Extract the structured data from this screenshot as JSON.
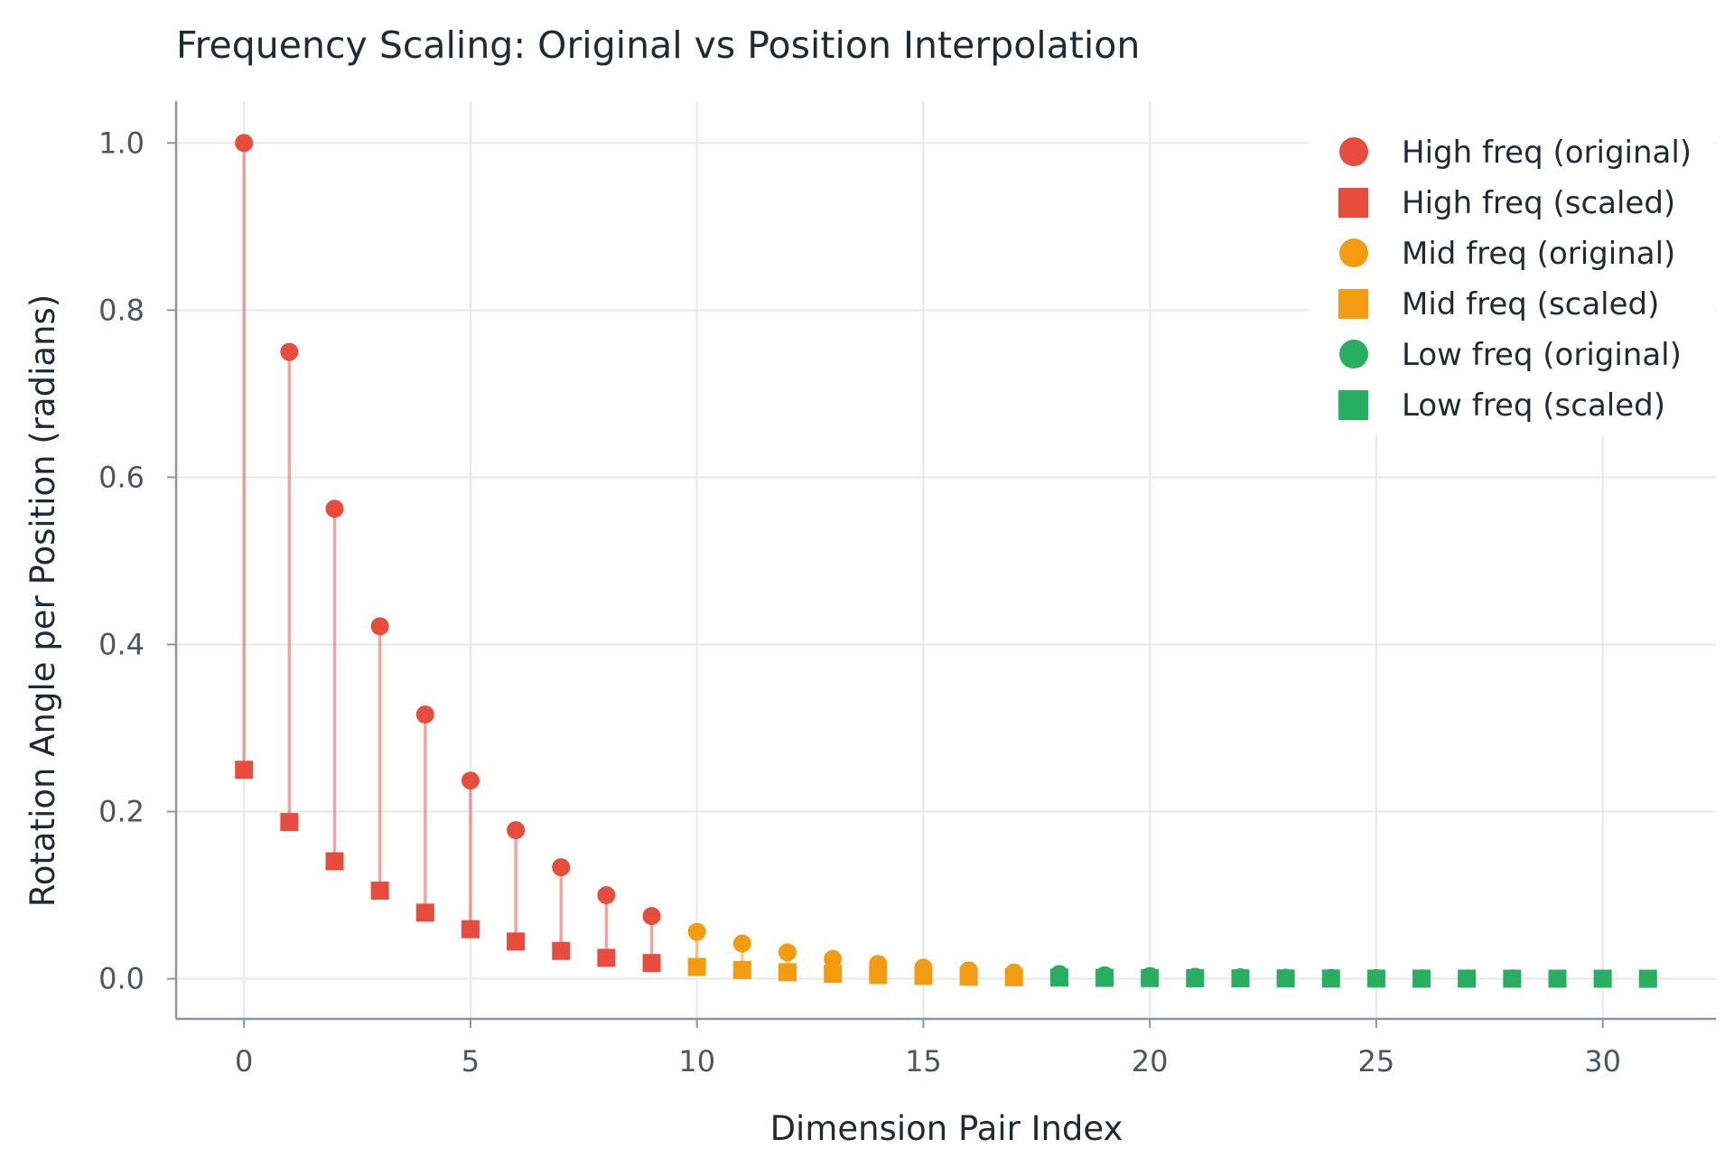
{
  "chart_data": {
    "type": "scatter",
    "title": "Frequency Scaling: Original vs Position Interpolation",
    "xlabel": "Dimension Pair Index",
    "ylabel": "Rotation Angle per Position (radians)",
    "xlim": [
      -1.5,
      32.5
    ],
    "ylim": [
      -0.048,
      1.05
    ],
    "xticks": [
      0,
      5,
      10,
      15,
      20,
      25,
      30
    ],
    "yticks": [
      0.0,
      0.2,
      0.4,
      0.6,
      0.8,
      1.0
    ],
    "ytick_labels": [
      "0.0",
      "0.2",
      "0.4",
      "0.6",
      "0.8",
      "1.0"
    ],
    "grid": true,
    "legend_position": "top-right",
    "groups": [
      {
        "name": "High freq",
        "color": "#e74c3c",
        "x": [
          0,
          1,
          2,
          3,
          4,
          5,
          6,
          7,
          8,
          9
        ]
      },
      {
        "name": "Mid freq",
        "color": "#f39c12",
        "x": [
          10,
          11,
          12,
          13,
          14,
          15,
          16,
          17
        ]
      },
      {
        "name": "Low freq",
        "color": "#27ae60",
        "x": [
          18,
          19,
          20,
          21,
          22,
          23,
          24,
          25,
          26,
          27,
          28,
          29,
          30,
          31
        ]
      }
    ],
    "series": [
      {
        "name": "High freq (original)",
        "marker": "circle",
        "color": "#e74c3c",
        "x": [
          0,
          1,
          2,
          3,
          4,
          5,
          6,
          7,
          8,
          9
        ],
        "values": [
          1.0,
          0.75,
          0.5623,
          0.4217,
          0.3162,
          0.2371,
          0.1778,
          0.1334,
          0.1,
          0.075
        ]
      },
      {
        "name": "High freq (scaled)",
        "marker": "square",
        "color": "#e74c3c",
        "x": [
          0,
          1,
          2,
          3,
          4,
          5,
          6,
          7,
          8,
          9
        ],
        "values": [
          0.25,
          0.1875,
          0.1406,
          0.1054,
          0.0791,
          0.0593,
          0.0445,
          0.0333,
          0.025,
          0.0188
        ]
      },
      {
        "name": "Mid freq (original)",
        "marker": "circle",
        "color": "#f39c12",
        "x": [
          10,
          11,
          12,
          13,
          14,
          15,
          16,
          17
        ],
        "values": [
          0.0562,
          0.0422,
          0.0316,
          0.0237,
          0.0178,
          0.0133,
          0.01,
          0.0075
        ]
      },
      {
        "name": "Mid freq (scaled)",
        "marker": "square",
        "color": "#f39c12",
        "x": [
          10,
          11,
          12,
          13,
          14,
          15,
          16,
          17
        ],
        "values": [
          0.0141,
          0.0105,
          0.0079,
          0.0059,
          0.0044,
          0.0033,
          0.0025,
          0.0019
        ]
      },
      {
        "name": "Low freq (original)",
        "marker": "circle",
        "color": "#27ae60",
        "x": [
          18,
          19,
          20,
          21,
          22,
          23,
          24,
          25,
          26,
          27,
          28,
          29,
          30,
          31
        ],
        "values": [
          0.0056,
          0.0042,
          0.0032,
          0.0024,
          0.0018,
          0.0013,
          0.001,
          0.00075,
          0.00056,
          0.00042,
          0.00032,
          0.00024,
          0.00018,
          0.00013
        ]
      },
      {
        "name": "Low freq (scaled)",
        "marker": "square",
        "color": "#27ae60",
        "x": [
          18,
          19,
          20,
          21,
          22,
          23,
          24,
          25,
          26,
          27,
          28,
          29,
          30,
          31
        ],
        "values": [
          0.0014,
          0.0011,
          0.0008,
          0.0006,
          0.00045,
          0.00033,
          0.00025,
          0.00019,
          0.00014,
          0.00011,
          8e-05,
          6e-05,
          4e-05,
          3e-05
        ]
      }
    ]
  }
}
